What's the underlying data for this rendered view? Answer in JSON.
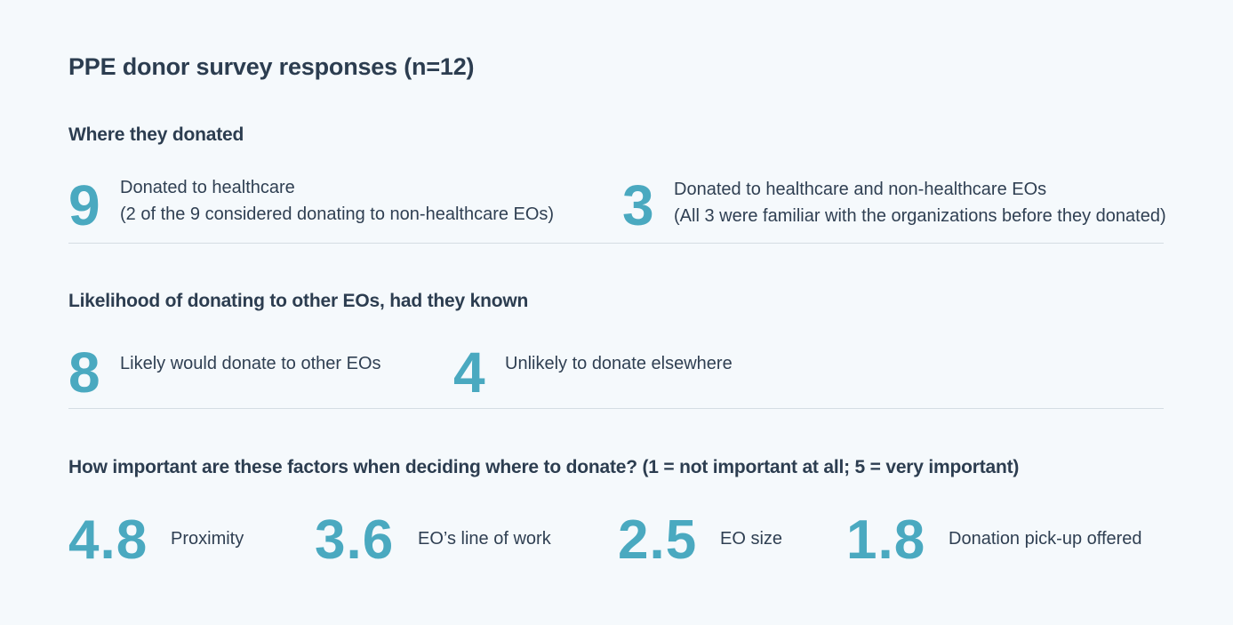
{
  "title": "PPE donor survey responses (n=12)",
  "sections": [
    {
      "heading": "Where they donated",
      "stats": [
        {
          "value": "9",
          "line1": "Donated to healthcare",
          "line2": "(2 of the 9 considered donating to non-healthcare EOs)"
        },
        {
          "value": "3",
          "line1": "Donated to healthcare and non-healthcare EOs",
          "line2": "(All 3 were familiar with the organizations before they donated)"
        }
      ]
    },
    {
      "heading": "Likelihood of donating to other EOs, had they known",
      "stats": [
        {
          "value": "8",
          "label": "Likely would donate to other EOs"
        },
        {
          "value": "4",
          "label": "Unlikely to donate elsewhere"
        }
      ]
    },
    {
      "heading": "How important are these factors when deciding where to donate? (1 = not important at all; 5 = very important)",
      "stats": [
        {
          "value": "4.8",
          "label": "Proximity"
        },
        {
          "value": "3.6",
          "label": "EO’s line of work"
        },
        {
          "value": "2.5",
          "label": "EO size"
        },
        {
          "value": "1.8",
          "label": "Donation pick-up offered"
        }
      ]
    }
  ],
  "colors": {
    "accent": "#4aa9c0",
    "text": "#2c3d50",
    "background": "#f5f9fc",
    "divider": "#d5dde3"
  }
}
